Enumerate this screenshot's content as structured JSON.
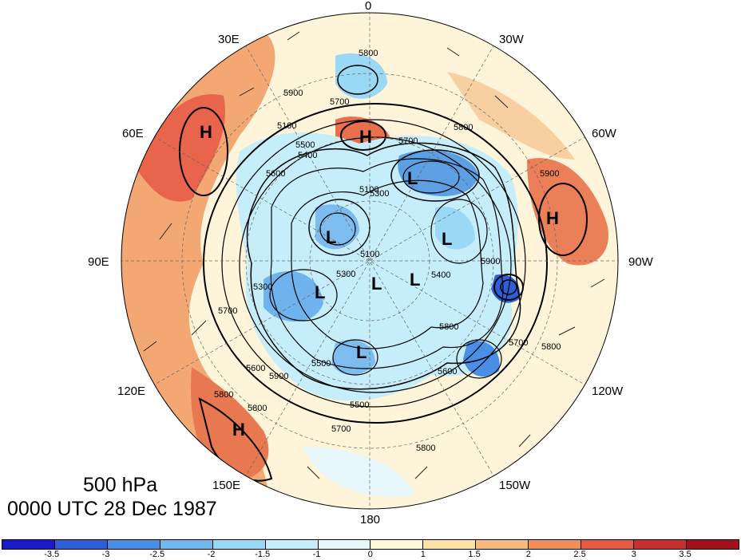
{
  "map": {
    "longitude_labels": [
      "0",
      "30W",
      "60W",
      "90W",
      "120W",
      "150W",
      "180",
      "150E",
      "120E",
      "90E",
      "60E",
      "30E"
    ],
    "contour_labels": [
      "5800",
      "5900",
      "5700",
      "5800",
      "5900",
      "5700",
      "5100",
      "5500",
      "5400",
      "5100",
      "5600",
      "5700",
      "5600",
      "5800",
      "5800",
      "5500",
      "5700",
      "5600",
      "5900",
      "5800",
      "5800",
      "5700",
      "5500",
      "5300",
      "5400",
      "5100",
      "5300",
      "5800",
      "5900",
      "5300"
    ],
    "highs_lows": [
      "H",
      "H",
      "H",
      "H",
      "L",
      "L",
      "L",
      "L",
      "L",
      "L",
      "L"
    ],
    "colors": {
      "ocean_bg": "#fdf4d9",
      "contour_line": "#000000"
    }
  },
  "title": {
    "line1": "500 hPa",
    "line2": "0000 UTC 28 Dec 1987"
  },
  "colorbar": {
    "colors": [
      "#1a1ac8",
      "#2e5fd6",
      "#4a8fe6",
      "#6fb8f0",
      "#9ad9f6",
      "#c6eefa",
      "#e8f7fb",
      "#fdf6d8",
      "#fbe2a6",
      "#f6bb7c",
      "#f08f5c",
      "#e45a45",
      "#c9302d",
      "#a3121c"
    ],
    "tick_labels": [
      "-3.5",
      "-3",
      "-2.5",
      "-2",
      "-1.5",
      "-1",
      "0",
      "1",
      "1.5",
      "2",
      "2.5",
      "3",
      "3.5"
    ]
  }
}
